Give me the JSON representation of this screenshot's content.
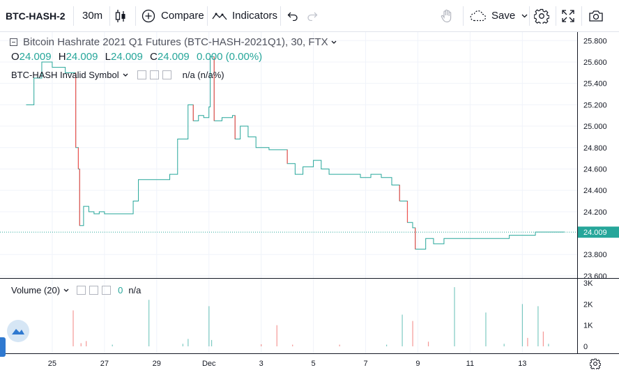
{
  "toolbar": {
    "symbol": "BTC-HASH-2",
    "interval": "30m",
    "compare_label": "Compare",
    "indicators_label": "Indicators",
    "save_label": "Save"
  },
  "legend": {
    "title": "Bitcoin Hashrate 2021 Q1 Futures (BTC-HASH-2021Q1), 30, FTX",
    "o_key": "O",
    "o_val": "24.009",
    "h_key": "H",
    "h_val": "24.009",
    "l_key": "L",
    "l_val": "24.009",
    "c_key": "C",
    "c_val": "24.009",
    "change": "0.000 (0.00%)"
  },
  "overlay_indicator": {
    "label": "BTC-HASH Invalid Symbol",
    "value": "n/a (n/a%)"
  },
  "volume_indicator": {
    "label": "Volume (20)",
    "value_zero": "0",
    "value_na": "n/a"
  },
  "colors": {
    "up": "#26a69a",
    "down": "#ef5350",
    "last_price": "#26a69a",
    "grid": "#f0f3fa"
  },
  "chart_data": [
    {
      "type": "line",
      "title": "Bitcoin Hashrate 2021 Q1 Futures (BTC-HASH-2021Q1), 30, FTX",
      "x_tick_labels": [
        "25",
        "27",
        "29",
        "Dec",
        "3",
        "5",
        "7",
        "9",
        "11",
        "13"
      ],
      "y_tick_labels": [
        "25.800",
        "25.600",
        "25.400",
        "25.200",
        "25.000",
        "24.800",
        "24.600",
        "24.400",
        "24.200",
        "24.009",
        "23.800",
        "23.600"
      ],
      "ylim": [
        23.58,
        25.88
      ],
      "last_price": 24.009,
      "grid": true,
      "series": [
        {
          "x": [
            24.0,
            24.3,
            24.6,
            25.0,
            25.5,
            25.8,
            25.9,
            26.0,
            26.05,
            26.2,
            26.4,
            26.6,
            26.8,
            27.0,
            27.2,
            27.5,
            27.9,
            28.1,
            28.3,
            28.6,
            28.9,
            29.2,
            29.5,
            29.8,
            30.0,
            30.2,
            30.4,
            30.6,
            30.8,
            31.0,
            31.05,
            31.2,
            31.5,
            31.9,
            32.0,
            32.2,
            32.5,
            32.8,
            33.0,
            33.3,
            33.6,
            34.0,
            34.3,
            34.6,
            35.0,
            35.3,
            35.6,
            36.0,
            36.4,
            36.8,
            37.2,
            37.6,
            38.0,
            38.3,
            38.6,
            38.8,
            38.9,
            39.0,
            39.3,
            39.6,
            40.0,
            40.5,
            41.0,
            41.5,
            42.0,
            42.5,
            43.0,
            43.5,
            44.0,
            44.6
          ],
          "values": [
            25.2,
            25.45,
            25.6,
            25.55,
            25.5,
            25.5,
            24.8,
            24.6,
            24.07,
            24.25,
            24.2,
            24.18,
            24.2,
            24.18,
            24.18,
            24.18,
            24.18,
            24.3,
            24.5,
            24.5,
            24.5,
            24.5,
            24.55,
            24.88,
            24.88,
            25.2,
            25.05,
            25.1,
            25.08,
            25.18,
            25.65,
            25.05,
            25.08,
            25.1,
            24.88,
            25.0,
            24.9,
            24.8,
            24.8,
            24.78,
            24.78,
            24.65,
            24.55,
            24.62,
            24.68,
            24.6,
            24.55,
            24.55,
            24.55,
            24.52,
            24.55,
            24.52,
            24.45,
            24.3,
            24.1,
            24.05,
            23.85,
            23.85,
            23.95,
            23.9,
            23.95,
            23.95,
            23.95,
            23.95,
            23.95,
            23.98,
            23.98,
            24.01,
            24.01,
            24.009
          ]
        }
      ]
    },
    {
      "type": "bar",
      "title": "Volume (20)",
      "y_tick_labels": [
        "3K",
        "2K",
        "1K",
        "0"
      ],
      "ylim": [
        0,
        3000
      ],
      "bars": [
        {
          "x": 25.8,
          "value": 1700,
          "dir": "down"
        },
        {
          "x": 26.1,
          "value": 150,
          "dir": "down"
        },
        {
          "x": 26.3,
          "value": 250,
          "dir": "down"
        },
        {
          "x": 27.3,
          "value": 80,
          "dir": "up"
        },
        {
          "x": 28.7,
          "value": 2200,
          "dir": "up"
        },
        {
          "x": 30.2,
          "value": 350,
          "dir": "up"
        },
        {
          "x": 30.0,
          "value": 120,
          "dir": "up"
        },
        {
          "x": 31.0,
          "value": 1900,
          "dir": "up"
        },
        {
          "x": 31.1,
          "value": 300,
          "dir": "up"
        },
        {
          "x": 33.0,
          "value": 100,
          "dir": "down"
        },
        {
          "x": 33.6,
          "value": 1000,
          "dir": "down"
        },
        {
          "x": 34.2,
          "value": 80,
          "dir": "down"
        },
        {
          "x": 36.0,
          "value": 80,
          "dir": "down"
        },
        {
          "x": 37.8,
          "value": 80,
          "dir": "up"
        },
        {
          "x": 38.4,
          "value": 1500,
          "dir": "up"
        },
        {
          "x": 38.8,
          "value": 1200,
          "dir": "down"
        },
        {
          "x": 39.4,
          "value": 220,
          "dir": "down"
        },
        {
          "x": 40.4,
          "value": 2800,
          "dir": "up"
        },
        {
          "x": 41.6,
          "value": 1600,
          "dir": "up"
        },
        {
          "x": 42.3,
          "value": 120,
          "dir": "up"
        },
        {
          "x": 43.0,
          "value": 2000,
          "dir": "up"
        },
        {
          "x": 43.2,
          "value": 400,
          "dir": "down"
        },
        {
          "x": 43.6,
          "value": 1900,
          "dir": "up"
        },
        {
          "x": 43.8,
          "value": 700,
          "dir": "down"
        },
        {
          "x": 44.0,
          "value": 120,
          "dir": "up"
        }
      ]
    }
  ]
}
